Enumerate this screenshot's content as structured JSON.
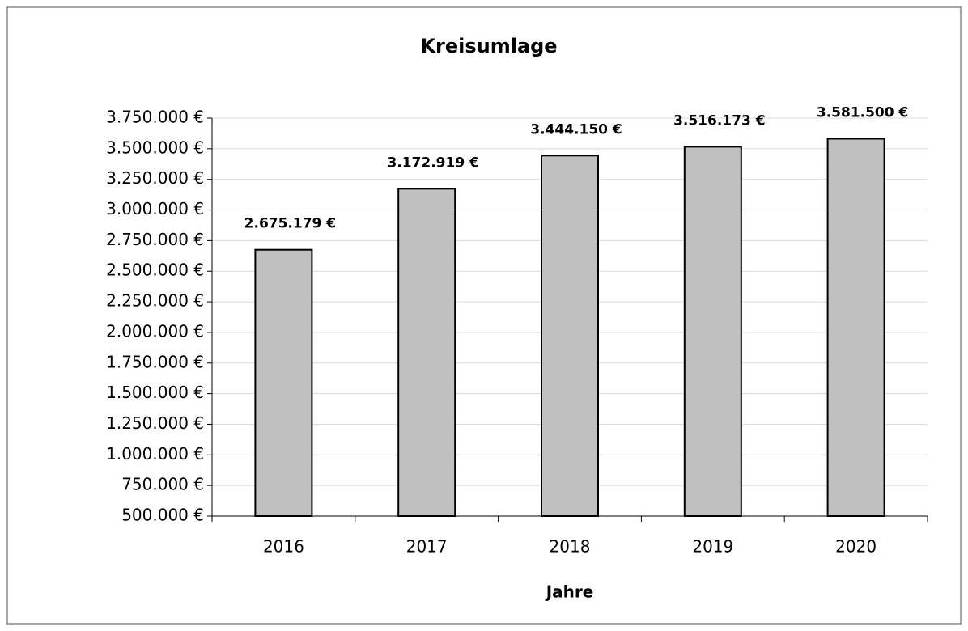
{
  "chart_data": {
    "type": "bar",
    "title": "Kreisumlage",
    "x_label": "Jahre",
    "categories": [
      "2016",
      "2017",
      "2018",
      "2019",
      "2020"
    ],
    "values": [
      2675179,
      3172919,
      3444150,
      3516173,
      3581500
    ],
    "value_labels": [
      "2.675.179 €",
      "3.172.919 €",
      "3.444.150 €",
      "3.516.173 €",
      "3.581.500 €"
    ],
    "color": "#c0c0c0",
    "ylim": [
      500000,
      3750000
    ],
    "yticks": [
      {
        "value": 500000,
        "label": "500.000 €"
      },
      {
        "value": 750000,
        "label": "750.000 €"
      },
      {
        "value": 1000000,
        "label": "1.000.000 €"
      },
      {
        "value": 1250000,
        "label": "1.250.000 €"
      },
      {
        "value": 1500000,
        "label": "1.500.000 €"
      },
      {
        "value": 1750000,
        "label": "1.750.000 €"
      },
      {
        "value": 2000000,
        "label": "2.000.000 €"
      },
      {
        "value": 2250000,
        "label": "2.250.000 €"
      },
      {
        "value": 2500000,
        "label": "2.500.000 €"
      },
      {
        "value": 2750000,
        "label": "2.750.000 €"
      },
      {
        "value": 3000000,
        "label": "3.000.000 €"
      },
      {
        "value": 3250000,
        "label": "3.250.000 €"
      },
      {
        "value": 3500000,
        "label": "3.500.000 €"
      },
      {
        "value": 3750000,
        "label": "3.750.000 €"
      }
    ],
    "grid": true
  }
}
